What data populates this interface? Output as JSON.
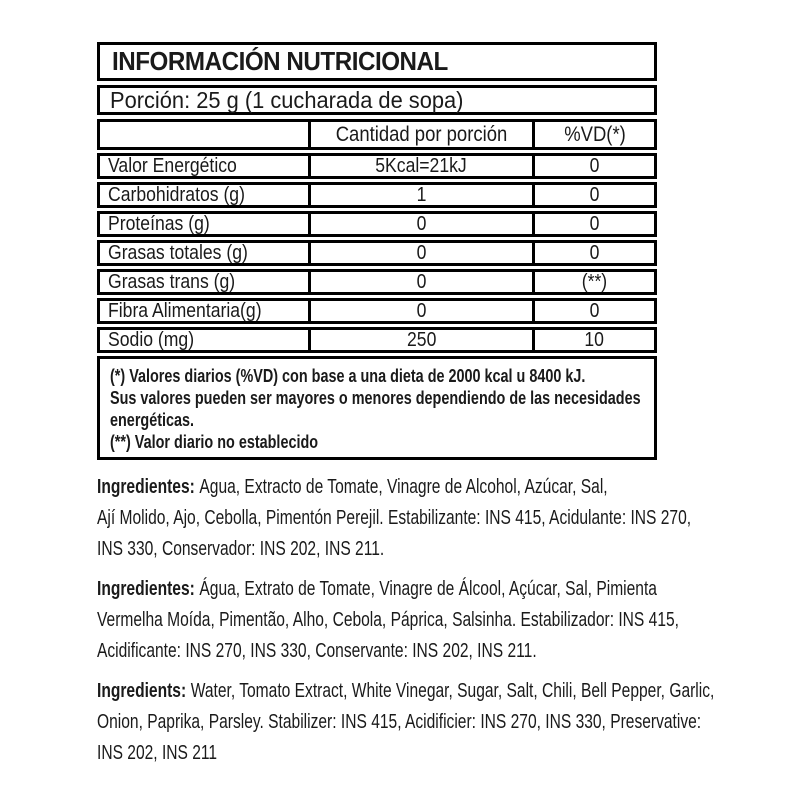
{
  "label": {
    "title": "INFORMACIÓN NUTRICIONAL",
    "portion": "Porción: 25 g (1 cucharada de sopa)",
    "columns": {
      "amount": "Cantidad por porción",
      "dv": "%VD(*)"
    },
    "rows": [
      {
        "label": "Valor Energético",
        "amount": "5Kcal=21kJ",
        "dv": "0"
      },
      {
        "label": "Carbohidratos (g)",
        "amount": "1",
        "dv": "0"
      },
      {
        "label": "Proteínas (g)",
        "amount": "0",
        "dv": "0"
      },
      {
        "label": "Grasas totales (g)",
        "amount": "0",
        "dv": "0"
      },
      {
        "label": "Grasas trans (g)",
        "amount": "0",
        "dv": "(**)"
      },
      {
        "label": "Fibra Alimentaria(g)",
        "amount": "0",
        "dv": "0"
      },
      {
        "label": "Sodio (mg)",
        "amount": "250",
        "dv": "10"
      }
    ],
    "footnote_lines": [
      "(*) Valores diarios (%VD) con base a una dieta de 2000 kcal u 8400 kJ.",
      "Sus valores pueden ser mayores o menores dependiendo de las necesidades",
      "energéticas.",
      "(**) Valor diario no establecido"
    ]
  },
  "ingredients": [
    {
      "label": "Ingredientes:",
      "lines": [
        "Agua, Extracto de Tomate, Vinagre de Alcohol, Azúcar, Sal,",
        "Ají Molido, Ajo, Cebolla, Pimentón Perejil. Estabilizante: INS 415, Acidulante: INS 270,",
        "INS 330, Conservador: INS 202, INS 211."
      ]
    },
    {
      "label": "Ingredientes:",
      "lines": [
        "Água, Extrato de Tomate, Vinagre de Álcool, Açúcar, Sal, Pimienta",
        "Vermelha Moída, Pimentão, Alho, Cebola, Páprica, Salsinha. Estabilizador: INS 415,",
        "Acidificante: INS 270, INS 330, Conservante: INS 202, INS 211."
      ]
    },
    {
      "label": "Ingredients:",
      "lines": [
        "Water, Tomato Extract, White Vinegar, Sugar, Salt, Chili, Bell Pepper, Garlic,",
        "Onion, Paprika, Parsley. Stabilizer: INS 415, Acidificier: INS 270, INS 330, Preservative:",
        "INS 202, INS 211"
      ]
    }
  ],
  "colors": {
    "text": "#1a1a1a",
    "border": "#000000",
    "background": "#ffffff"
  }
}
